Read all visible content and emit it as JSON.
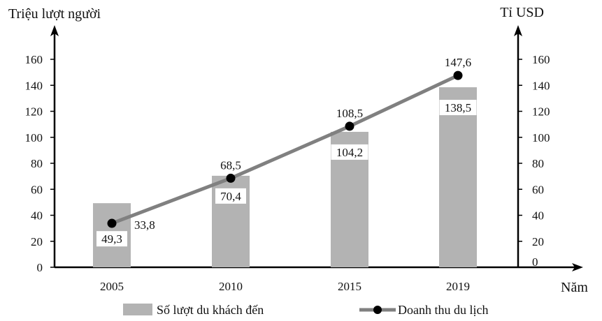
{
  "chart_data": {
    "type": "bar",
    "categories": [
      "2005",
      "2010",
      "2015",
      "2019"
    ],
    "series": [
      {
        "name": "Số lượt du khách đến",
        "kind": "bar",
        "axis": "left",
        "values": [
          49.3,
          70.4,
          104.2,
          138.5
        ],
        "labels": [
          "49,3",
          "70,4",
          "104,2",
          "138,5"
        ],
        "color": "#b3b3b3"
      },
      {
        "name": "Doanh thu du lịch",
        "kind": "line",
        "axis": "right",
        "values": [
          33.8,
          68.5,
          108.5,
          147.6
        ],
        "labels": [
          "33,8",
          "68,5",
          "108,5",
          "147,6"
        ],
        "color": "#808080",
        "marker_color": "#000000"
      }
    ],
    "xlabel": "Năm",
    "ylabel_left": "Triệu lượt người",
    "ylabel_right": "Tỉ USD",
    "ylim": [
      0,
      160
    ],
    "ylim_right": [
      0,
      160
    ],
    "yticks_left": [
      "0",
      "20",
      "40",
      "60",
      "80",
      "100",
      "120",
      "140",
      "160"
    ],
    "yticks_right": [
      "0",
      "20",
      "40",
      "60",
      "80",
      "100",
      "120",
      "140",
      "160"
    ],
    "grid": false,
    "legend_position": "bottom"
  }
}
